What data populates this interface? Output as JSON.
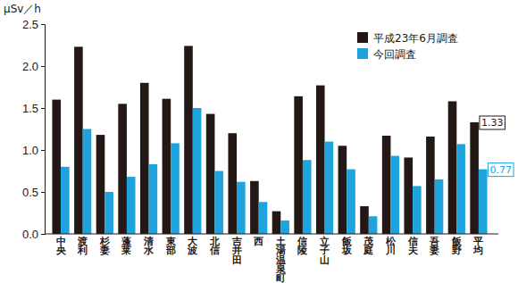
{
  "chart_data": {
    "type": "bar",
    "y_label": "μSv／h",
    "categories": [
      "中央",
      "渡利",
      "杉妻",
      "蓬莱",
      "清水",
      "東部",
      "大波",
      "北信",
      "吉井田",
      "西",
      "土湯温泉町",
      "信陵",
      "立子山",
      "飯坂",
      "茂庭",
      "松川",
      "信夫",
      "吾妻",
      "飯野",
      "平均"
    ],
    "series": [
      {
        "name": "平成23年6月調査",
        "color": "#231815",
        "values": [
          1.6,
          2.23,
          1.18,
          1.55,
          1.8,
          1.61,
          2.24,
          1.43,
          1.2,
          0.63,
          0.27,
          1.64,
          1.77,
          1.05,
          0.33,
          1.17,
          0.91,
          1.16,
          1.58,
          1.33
        ]
      },
      {
        "name": "今回調査",
        "color": "#1fa3dc",
        "values": [
          0.8,
          1.25,
          0.5,
          0.68,
          0.83,
          1.08,
          1.5,
          0.75,
          0.62,
          0.38,
          0.16,
          0.88,
          1.1,
          0.77,
          0.21,
          0.93,
          0.57,
          0.65,
          1.07,
          0.77
        ]
      }
    ],
    "ylim": [
      0,
      2.5
    ],
    "yticks": [
      {
        "value": 0,
        "label": "0.0"
      },
      0.5,
      {
        "value": 1,
        "label": "1.0"
      },
      1.5,
      {
        "value": 2,
        "label": "2.0"
      },
      2.5
    ],
    "grid": false,
    "legend": "upper right",
    "annotations": [
      "1.33",
      "0.77"
    ]
  }
}
